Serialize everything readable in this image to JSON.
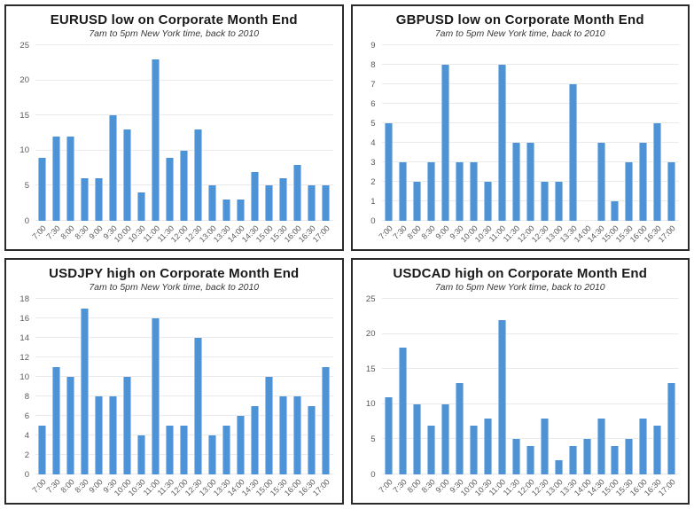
{
  "colors": {
    "bar": "#4e93d6",
    "bar_edge": "#9dc3e8",
    "gridline": "#eaeaea",
    "axis_label": "#595959",
    "title": "#1a1a1a",
    "panel_border": "#2b2b2b"
  },
  "chart_data": [
    {
      "type": "bar",
      "title": "EURUSD low on Corporate Month End",
      "subtitle": "7am to 5pm New York time, back to 2010",
      "categories": [
        "7:00",
        "7:30",
        "8:00",
        "8:30",
        "9:00",
        "9:30",
        "10:00",
        "10:30",
        "11:00",
        "11:30",
        "12:00",
        "12:30",
        "13:00",
        "13:30",
        "14:00",
        "14:30",
        "15:00",
        "15:30",
        "16:00",
        "16:30",
        "17:00"
      ],
      "values": [
        9,
        12,
        12,
        6,
        6,
        15,
        13,
        4,
        23,
        9,
        10,
        13,
        5,
        3,
        3,
        7,
        5,
        6,
        8,
        5,
        5
      ],
      "xlabel": "",
      "ylabel": "",
      "ylim": [
        0,
        25
      ],
      "ytick_step": 5,
      "grid": true,
      "legend": false
    },
    {
      "type": "bar",
      "title": "GBPUSD low on Corporate Month End",
      "subtitle": "7am to 5pm New York time, back to 2010",
      "categories": [
        "7:00",
        "7:30",
        "8:00",
        "8:30",
        "9:00",
        "9:30",
        "10:00",
        "10:30",
        "11:00",
        "11:30",
        "12:00",
        "12:30",
        "13:00",
        "13:30",
        "14:00",
        "14:30",
        "15:00",
        "15:30",
        "16:00",
        "16:30",
        "17:00"
      ],
      "values": [
        5,
        3,
        2,
        3,
        8,
        3,
        3,
        2,
        8,
        4,
        4,
        2,
        2,
        7,
        0,
        4,
        1,
        3,
        4,
        5,
        3
      ],
      "xlabel": "",
      "ylabel": "",
      "ylim": [
        0,
        9
      ],
      "ytick_step": 1,
      "grid": true,
      "legend": false
    },
    {
      "type": "bar",
      "title": "USDJPY high on Corporate Month End",
      "subtitle": "7am to 5pm New York time, back to 2010",
      "categories": [
        "7:00",
        "7:30",
        "8:00",
        "8:30",
        "9:00",
        "9:30",
        "10:00",
        "10:30",
        "11:00",
        "11:30",
        "12:00",
        "12:30",
        "13:00",
        "13:30",
        "14:00",
        "14:30",
        "15:00",
        "15:30",
        "16:00",
        "16:30",
        "17:00"
      ],
      "values": [
        5,
        11,
        10,
        17,
        8,
        8,
        10,
        4,
        16,
        5,
        5,
        14,
        4,
        5,
        6,
        7,
        10,
        8,
        8,
        7,
        11
      ],
      "xlabel": "",
      "ylabel": "",
      "ylim": [
        0,
        18
      ],
      "ytick_step": 2,
      "grid": true,
      "legend": false
    },
    {
      "type": "bar",
      "title": "USDCAD high on Corporate Month End",
      "subtitle": "7am to 5pm New York time, back to 2010",
      "categories": [
        "7:00",
        "7:30",
        "8:00",
        "8:30",
        "9:00",
        "9:30",
        "10:00",
        "10:30",
        "11:00",
        "11:30",
        "12:00",
        "12:30",
        "13:00",
        "13:30",
        "14:00",
        "14:30",
        "15:00",
        "15:30",
        "16:00",
        "16:30",
        "17:00"
      ],
      "values": [
        11,
        18,
        10,
        7,
        10,
        13,
        7,
        8,
        22,
        5,
        4,
        8,
        2,
        4,
        5,
        8,
        4,
        5,
        8,
        7,
        13
      ],
      "xlabel": "",
      "ylabel": "",
      "ylim": [
        0,
        25
      ],
      "ytick_step": 5,
      "grid": true,
      "legend": false
    }
  ]
}
